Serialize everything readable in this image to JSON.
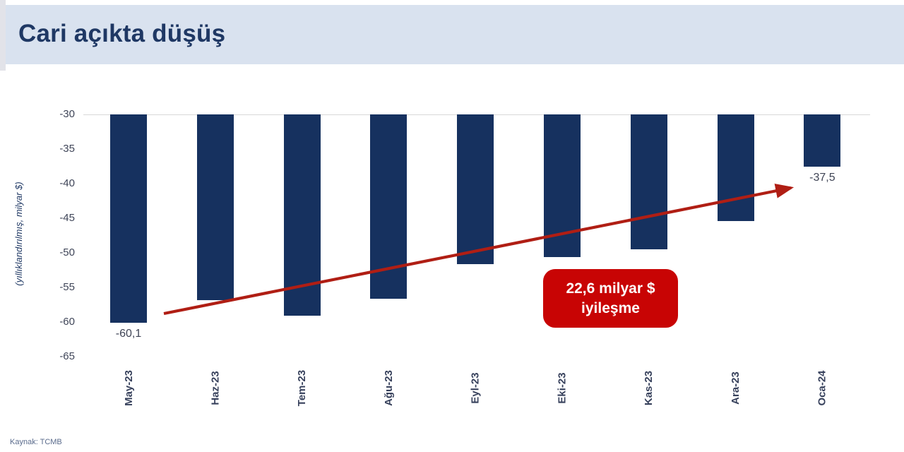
{
  "header": {
    "title": "Cari açıkta düşüş"
  },
  "source": {
    "label": "Kaynak: TCMB"
  },
  "colors": {
    "header_bg": "#D9E2EF",
    "title_text": "#1F3864",
    "bar": "#16315F",
    "badge_bg": "#C80404",
    "badge_text": "#FFFFFF",
    "arrow": "#B01E14",
    "gridline": "#D9D9D9",
    "axis_text": "#3F4558",
    "value_label_text": "#3F4455",
    "source_text": "#5A6B8C"
  },
  "chart_data": {
    "type": "bar",
    "title": "Cari açıkta düşüş",
    "categories": [
      "May-23",
      "Haz-23",
      "Tem-23",
      "Ağu-23",
      "Eyl-23",
      "Eki-23",
      "Kas-23",
      "Ara-23",
      "Oca-24"
    ],
    "values": [
      -60.1,
      -56.8,
      -59.1,
      -56.6,
      -51.6,
      -50.6,
      -49.5,
      -45.4,
      -37.5
    ],
    "value_labels": {
      "first": "-60,1",
      "last": "-37,5"
    },
    "ylabel": "(yıllıklandırılmış, milyar $)",
    "xlabel": "",
    "yticks": [
      -30,
      -35,
      -40,
      -45,
      -50,
      -55,
      -60,
      -65
    ],
    "ylim": [
      -65,
      -30
    ],
    "grid": "single top gridline at -30 only",
    "legend": "none",
    "annotation": {
      "line1": "22,6 milyar $",
      "line2": "iyileşme"
    },
    "arrow": {
      "meaning": "improvement trend from May-23 deficit toward Oca-24 value"
    }
  }
}
